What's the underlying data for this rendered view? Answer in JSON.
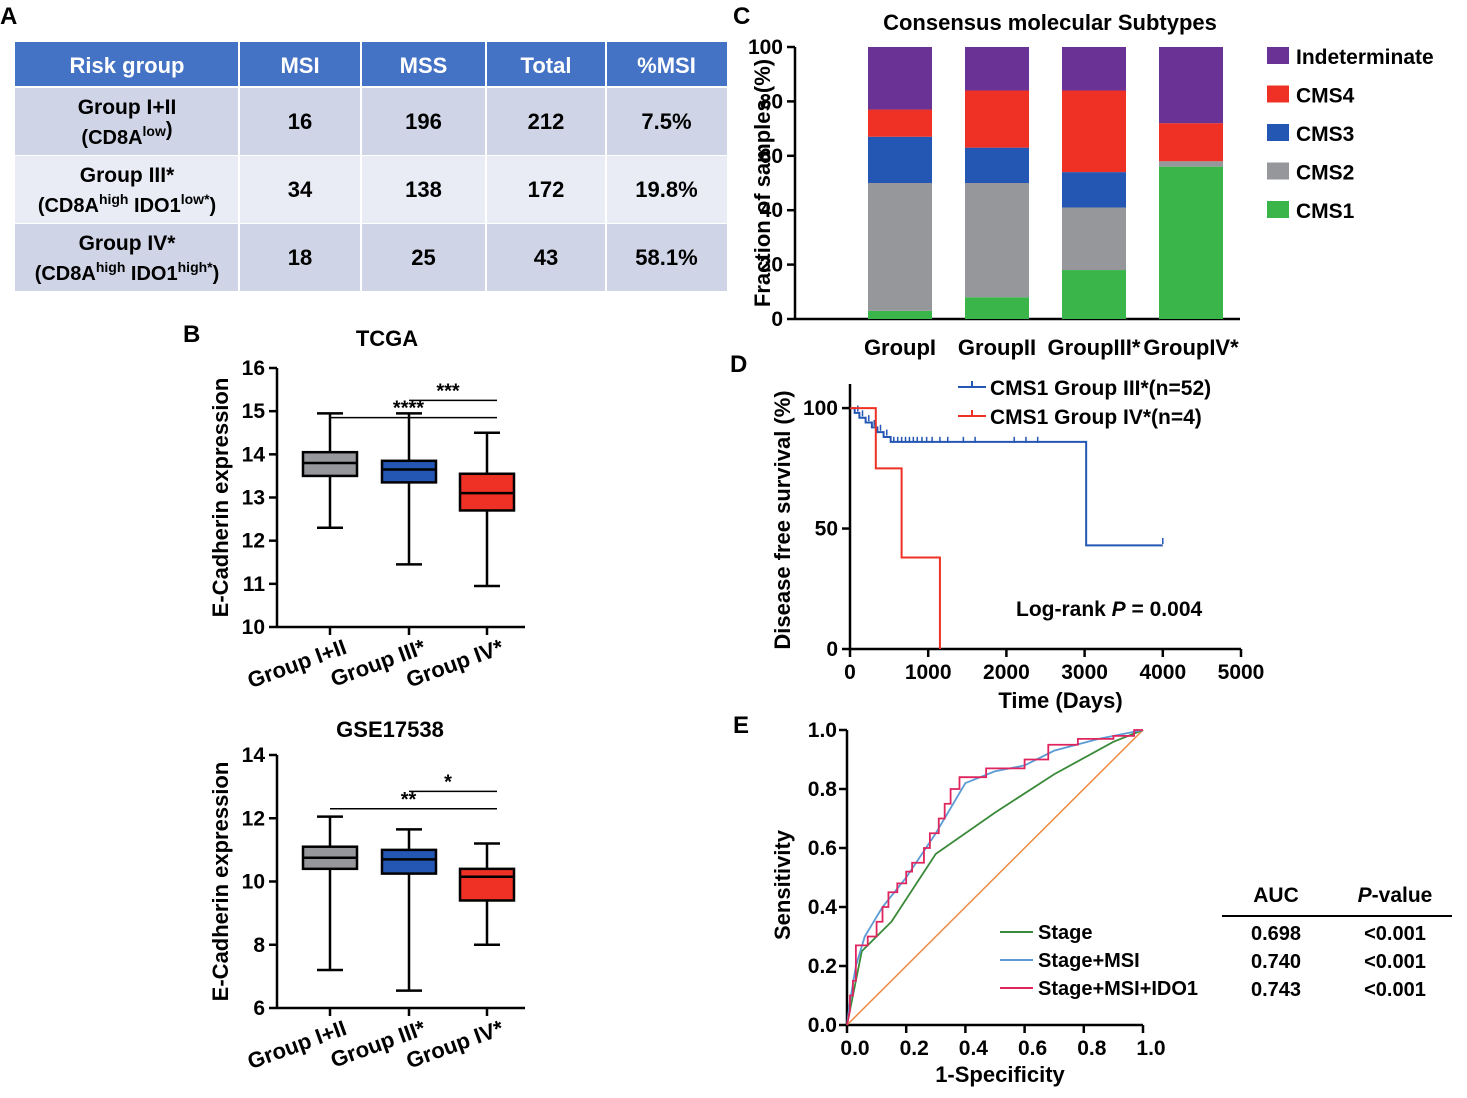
{
  "panel_labels": {
    "a": "A",
    "b": "B",
    "c": "C",
    "d": "D",
    "e": "E"
  },
  "colors": {
    "table_header": "#4472c4",
    "table_row_dark": "#cfd5e6",
    "table_row_light": "#e9ebf5",
    "gray": "#95979b",
    "blue": "#2457b3",
    "red": "#ef3125",
    "green": "#3ab54a",
    "purple": "#6a3295",
    "roc_stage": "#3a8a3a",
    "roc_msi": "#5b9bd5",
    "roc_ido1": "#e0245e",
    "diagonal": "#f08a40"
  },
  "chart_data": [
    {
      "id": "A",
      "type": "table",
      "headers": [
        "Risk group",
        "MSI",
        "MSS",
        "Total",
        "%MSI"
      ],
      "rows": [
        {
          "group": "Group I+II",
          "sub_main": "(CD8A",
          "sub_sup1": "low",
          "sub_mid": "",
          "sub_sup2": "",
          "sub_end": ")",
          "msi": "16",
          "mss": "196",
          "total": "212",
          "pct": "7.5%"
        },
        {
          "group": "Group III*",
          "sub_main": "(CD8A",
          "sub_sup1": "high",
          "sub_mid": " IDO1",
          "sub_sup2": "low*",
          "sub_end": ")",
          "msi": "34",
          "mss": "138",
          "total": "172",
          "pct": "19.8%"
        },
        {
          "group": "Group IV*",
          "sub_main": "(CD8A",
          "sub_sup1": "high",
          "sub_mid": " IDO1",
          "sub_sup2": "high*",
          "sub_end": ")",
          "msi": "18",
          "mss": "25",
          "total": "43",
          "pct": "58.1%"
        }
      ]
    },
    {
      "id": "B1",
      "type": "box",
      "title": "TCGA",
      "ylabel": "E-Cadherin expression",
      "ylim": [
        10,
        16
      ],
      "yticks": [
        10,
        11,
        12,
        13,
        14,
        15,
        16
      ],
      "categories": [
        "Group I+II",
        "Group III*",
        "Group IV*"
      ],
      "boxes": [
        {
          "min": 12.3,
          "q1": 13.5,
          "median": 13.8,
          "q3": 14.05,
          "max": 14.95
        },
        {
          "min": 11.45,
          "q1": 13.35,
          "median": 13.65,
          "q3": 13.85,
          "max": 14.95
        },
        {
          "min": 10.95,
          "q1": 12.7,
          "median": 13.1,
          "q3": 13.55,
          "max": 14.5
        }
      ],
      "significance": [
        {
          "from": 1,
          "to": 2,
          "label": "***",
          "level": 15.25
        },
        {
          "from": 0,
          "to": 2,
          "label": "****",
          "level": 14.85
        }
      ]
    },
    {
      "id": "B2",
      "type": "box",
      "title": "GSE17538",
      "ylabel": "E-Cadherin expression",
      "ylim": [
        6,
        14
      ],
      "yticks": [
        6,
        8,
        10,
        12,
        14
      ],
      "categories": [
        "Group I+II",
        "Group III*",
        "Group IV*"
      ],
      "boxes": [
        {
          "min": 7.2,
          "q1": 10.4,
          "median": 10.75,
          "q3": 11.1,
          "max": 12.05
        },
        {
          "min": 6.55,
          "q1": 10.25,
          "median": 10.7,
          "q3": 11.0,
          "max": 11.65
        },
        {
          "min": 8.0,
          "q1": 9.4,
          "median": 10.15,
          "q3": 10.4,
          "max": 11.2
        }
      ],
      "significance": [
        {
          "from": 1,
          "to": 2,
          "label": "*",
          "level": 12.85
        },
        {
          "from": 0,
          "to": 2,
          "label": "**",
          "level": 12.3
        }
      ]
    },
    {
      "id": "C",
      "type": "bar",
      "stacked": true,
      "title": "Consensus molecular Subtypes",
      "ylabel": "Fraction of samples (%)",
      "ylim": [
        0,
        100
      ],
      "yticks": [
        0,
        20,
        40,
        60,
        80,
        100
      ],
      "categories": [
        "GroupI",
        "GroupII",
        "GroupIII*",
        "GroupIV*"
      ],
      "series": [
        {
          "name": "CMS1",
          "color": "#3ab54a",
          "values": [
            3,
            8,
            18,
            56
          ]
        },
        {
          "name": "CMS2",
          "color": "#95979b",
          "values": [
            47,
            42,
            23,
            2
          ]
        },
        {
          "name": "CMS3",
          "color": "#2457b3",
          "values": [
            17,
            13,
            13,
            0
          ]
        },
        {
          "name": "CMS4",
          "color": "#ef3125",
          "values": [
            10,
            21,
            30,
            14
          ]
        },
        {
          "name": "Indeterminate",
          "color": "#6a3295",
          "values": [
            23,
            16,
            16,
            28
          ]
        }
      ],
      "legend_order": [
        "Indeterminate",
        "CMS4",
        "CMS3",
        "CMS2",
        "CMS1"
      ]
    },
    {
      "id": "D",
      "type": "line",
      "step": true,
      "xlabel": "Time (Days)",
      "ylabel": "Disease free survival (%)",
      "xlim": [
        0,
        5000
      ],
      "ylim": [
        0,
        110
      ],
      "xticks": [
        0,
        1000,
        2000,
        3000,
        4000,
        5000
      ],
      "yticks": [
        0,
        50,
        100
      ],
      "annotation_prefix": "Log-rank ",
      "annotation_p": "P",
      "annotation_suffix": " = 0.004",
      "series": [
        {
          "name": "CMS1 Group III*(n=52)",
          "color": "#2457b3",
          "points": [
            [
              0,
              100
            ],
            [
              60,
              100
            ],
            [
              60,
              98
            ],
            [
              120,
              98
            ],
            [
              120,
              96
            ],
            [
              200,
              96
            ],
            [
              200,
              94
            ],
            [
              280,
              94
            ],
            [
              280,
              92
            ],
            [
              350,
              92
            ],
            [
              350,
              90
            ],
            [
              430,
              90
            ],
            [
              430,
              88
            ],
            [
              520,
              88
            ],
            [
              520,
              86
            ],
            [
              3020,
              86
            ],
            [
              3020,
              43
            ],
            [
              4000,
              43
            ]
          ],
          "censors": [
            [
              100,
              99
            ],
            [
              160,
              97
            ],
            [
              240,
              95
            ],
            [
              310,
              93
            ],
            [
              390,
              91
            ],
            [
              470,
              89
            ],
            [
              560,
              86
            ],
            [
              610,
              86
            ],
            [
              660,
              86
            ],
            [
              710,
              86
            ],
            [
              760,
              86
            ],
            [
              810,
              86
            ],
            [
              860,
              86
            ],
            [
              920,
              86
            ],
            [
              980,
              86
            ],
            [
              1050,
              86
            ],
            [
              1150,
              86
            ],
            [
              1250,
              86
            ],
            [
              1450,
              86
            ],
            [
              1600,
              86
            ],
            [
              2100,
              86
            ],
            [
              2250,
              86
            ],
            [
              2400,
              86
            ],
            [
              4000,
              44
            ]
          ]
        },
        {
          "name": "CMS1 Group IV*(n=4)",
          "color": "#ef3125",
          "points": [
            [
              0,
              100
            ],
            [
              330,
              100
            ],
            [
              330,
              75
            ],
            [
              660,
              75
            ],
            [
              660,
              38
            ],
            [
              1150,
              38
            ],
            [
              1150,
              0
            ]
          ],
          "censors": []
        }
      ]
    },
    {
      "id": "E",
      "type": "line",
      "xlabel": "1-Specificity",
      "ylabel": "Sensitivity",
      "xlim": [
        0,
        1
      ],
      "ylim": [
        0,
        1
      ],
      "xticks": [
        "0.0",
        "0.2",
        "0.4",
        "0.6",
        "0.8",
        "1.0"
      ],
      "yticks": [
        "0.0",
        "0.2",
        "0.4",
        "0.6",
        "0.8",
        "1.0"
      ],
      "table_headers": {
        "auc": "AUC",
        "p_prefix": "P",
        "p_suffix": "-value"
      },
      "series": [
        {
          "name": "Stage",
          "color": "#3a8a3a",
          "auc": "0.698",
          "p": "<0.001",
          "points": [
            [
              0,
              0
            ],
            [
              0.02,
              0.1
            ],
            [
              0.05,
              0.25
            ],
            [
              0.15,
              0.35
            ],
            [
              0.3,
              0.58
            ],
            [
              0.5,
              0.72
            ],
            [
              0.7,
              0.85
            ],
            [
              0.9,
              0.96
            ],
            [
              1,
              1
            ]
          ]
        },
        {
          "name": "Stage+MSI",
          "color": "#5b9bd5",
          "auc": "0.740",
          "p": "<0.001",
          "points": [
            [
              0,
              0
            ],
            [
              0.01,
              0.08
            ],
            [
              0.03,
              0.2
            ],
            [
              0.06,
              0.3
            ],
            [
              0.12,
              0.4
            ],
            [
              0.2,
              0.5
            ],
            [
              0.3,
              0.65
            ],
            [
              0.4,
              0.82
            ],
            [
              0.5,
              0.86
            ],
            [
              0.6,
              0.88
            ],
            [
              0.7,
              0.93
            ],
            [
              0.85,
              0.97
            ],
            [
              1,
              1
            ]
          ]
        },
        {
          "name": "Stage+MSI+IDO1",
          "color": "#e0245e",
          "auc": "0.743",
          "p": "<0.001",
          "points": [
            [
              0,
              0
            ],
            [
              0.01,
              0.05
            ],
            [
              0.01,
              0.1
            ],
            [
              0.02,
              0.1
            ],
            [
              0.02,
              0.15
            ],
            [
              0.03,
              0.15
            ],
            [
              0.03,
              0.27
            ],
            [
              0.07,
              0.27
            ],
            [
              0.07,
              0.3
            ],
            [
              0.1,
              0.3
            ],
            [
              0.1,
              0.35
            ],
            [
              0.12,
              0.35
            ],
            [
              0.12,
              0.4
            ],
            [
              0.14,
              0.4
            ],
            [
              0.14,
              0.45
            ],
            [
              0.17,
              0.45
            ],
            [
              0.17,
              0.48
            ],
            [
              0.2,
              0.48
            ],
            [
              0.2,
              0.52
            ],
            [
              0.22,
              0.52
            ],
            [
              0.22,
              0.55
            ],
            [
              0.26,
              0.55
            ],
            [
              0.26,
              0.6
            ],
            [
              0.28,
              0.6
            ],
            [
              0.28,
              0.65
            ],
            [
              0.31,
              0.65
            ],
            [
              0.31,
              0.7
            ],
            [
              0.33,
              0.7
            ],
            [
              0.33,
              0.75
            ],
            [
              0.35,
              0.75
            ],
            [
              0.35,
              0.8
            ],
            [
              0.38,
              0.8
            ],
            [
              0.38,
              0.84
            ],
            [
              0.47,
              0.84
            ],
            [
              0.47,
              0.87
            ],
            [
              0.6,
              0.87
            ],
            [
              0.6,
              0.9
            ],
            [
              0.68,
              0.9
            ],
            [
              0.68,
              0.95
            ],
            [
              0.78,
              0.95
            ],
            [
              0.78,
              0.97
            ],
            [
              0.9,
              0.97
            ],
            [
              0.9,
              0.98
            ],
            [
              0.97,
              0.98
            ],
            [
              0.97,
              1
            ],
            [
              1,
              1
            ]
          ]
        }
      ]
    }
  ]
}
